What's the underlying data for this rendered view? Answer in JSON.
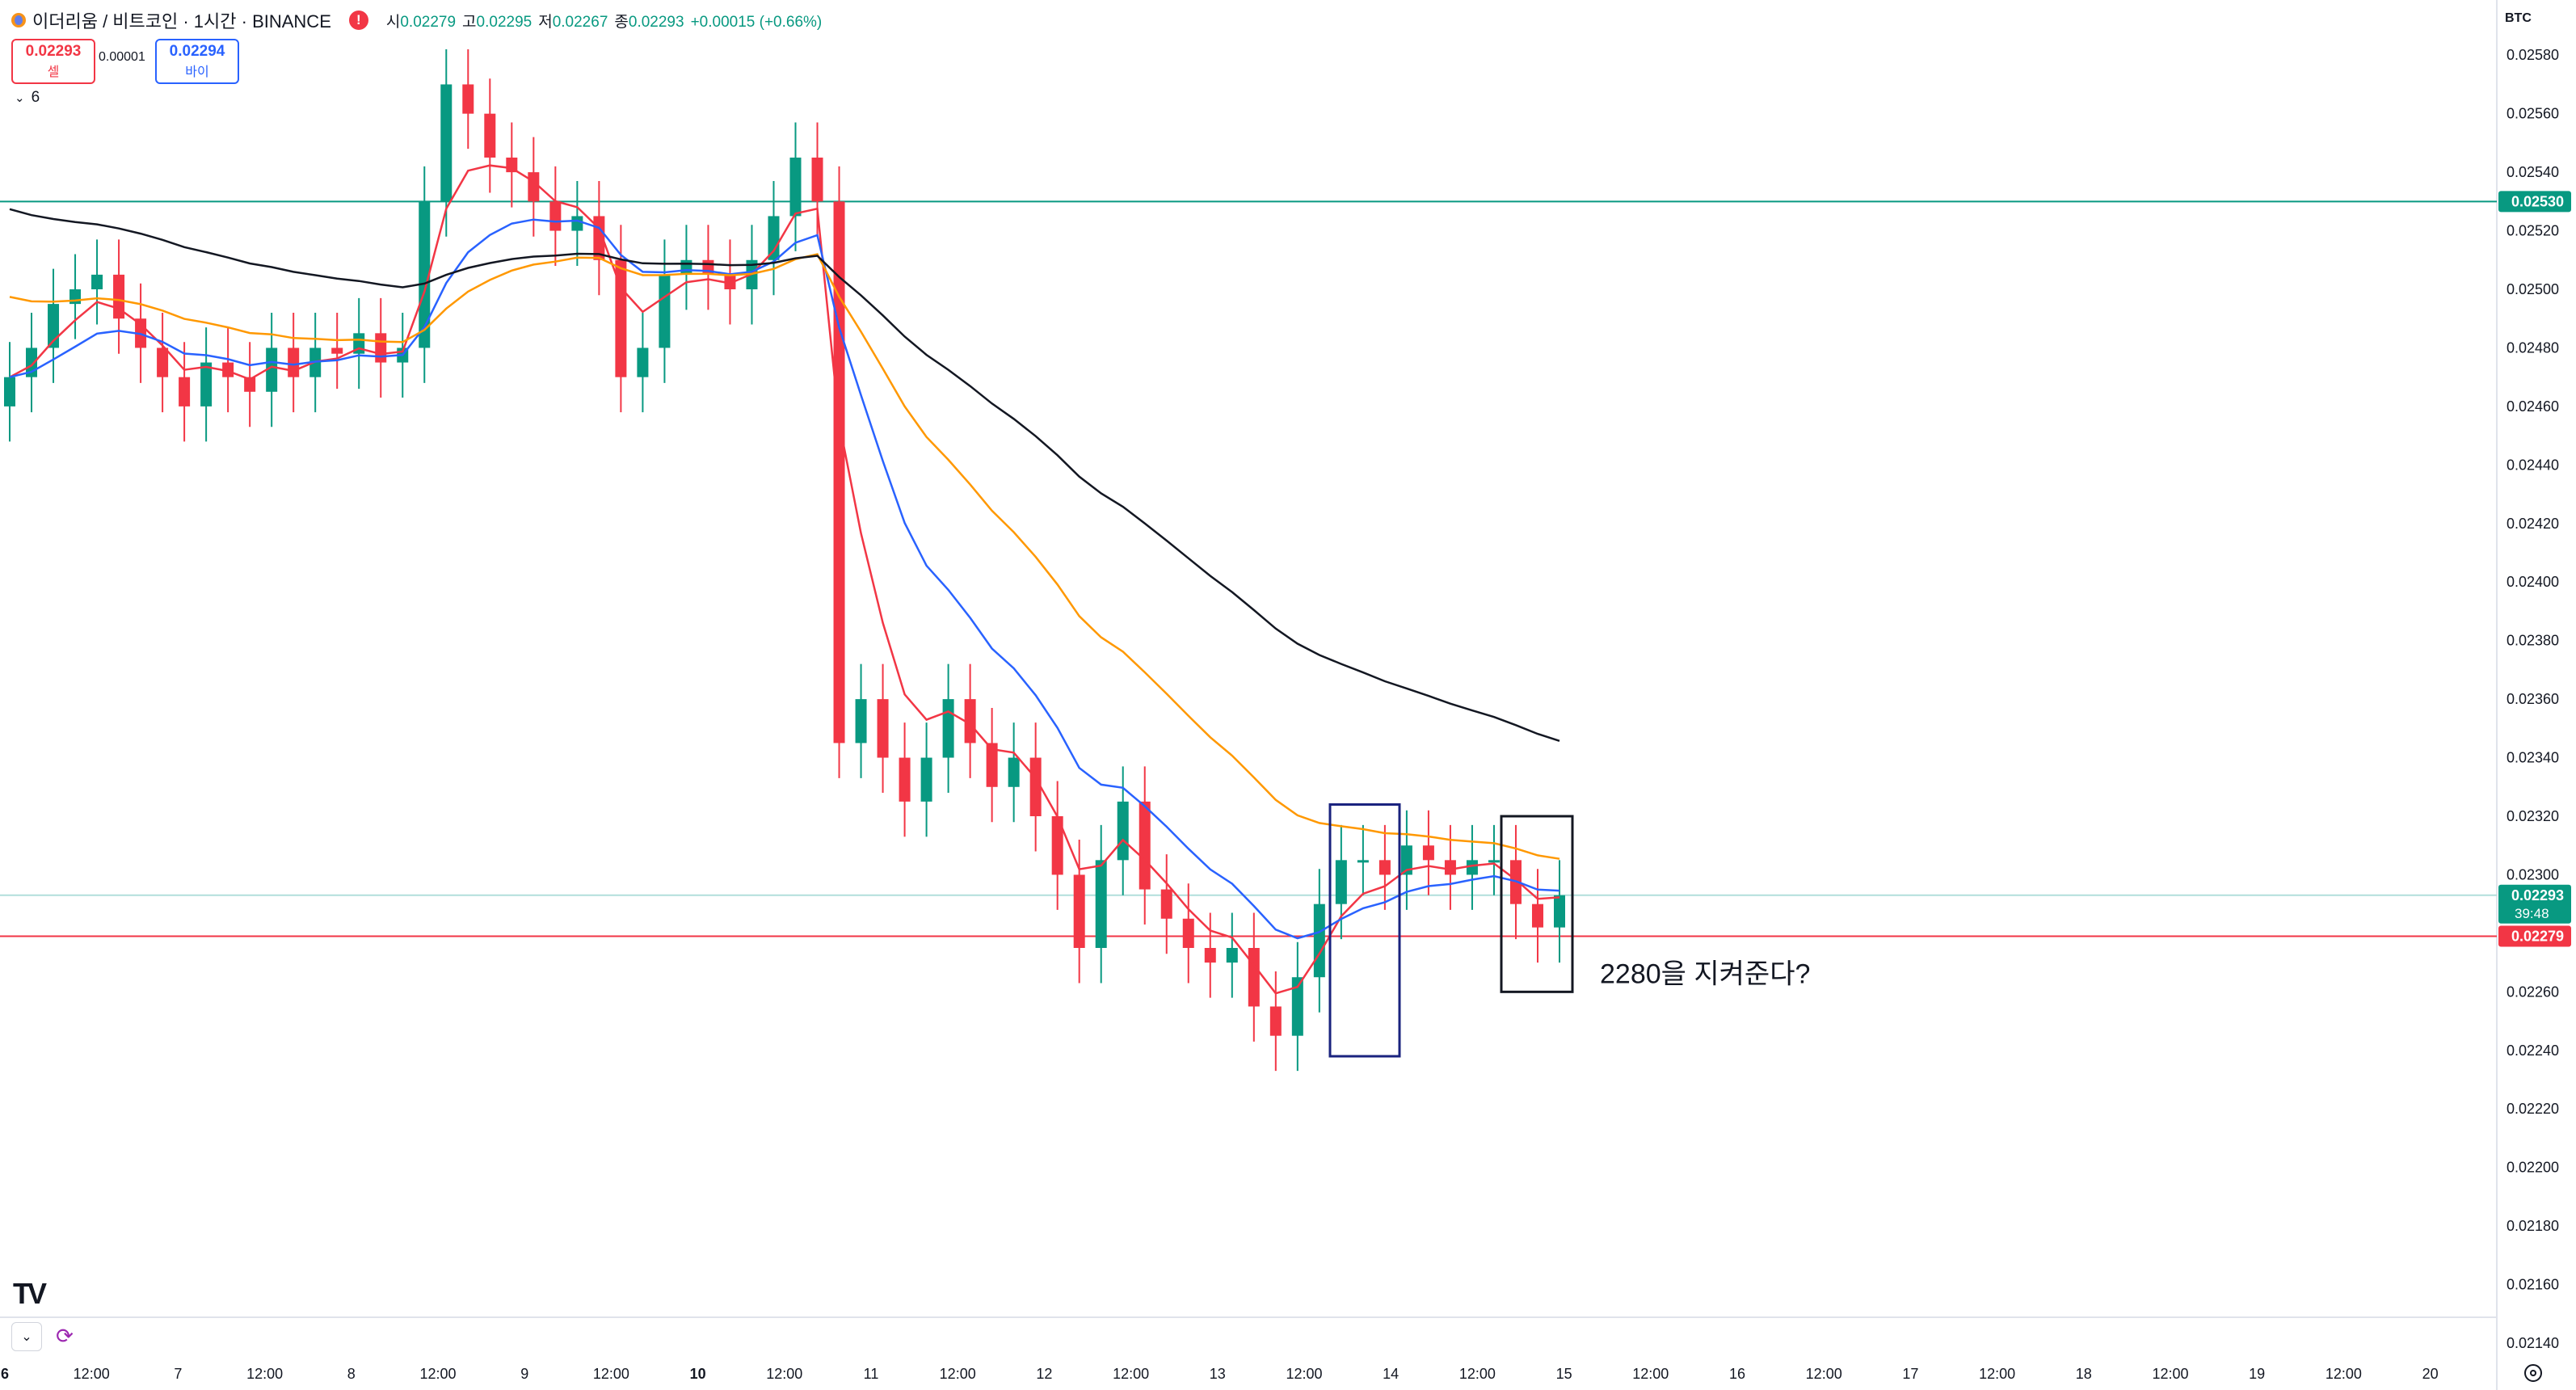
{
  "header": {
    "title": "이더리움 / 비트코인 · 1시간 · BINANCE",
    "alert_icon": "!",
    "ohlc": [
      {
        "k": "시",
        "v": "0.02279"
      },
      {
        "k": "고",
        "v": "0.02295"
      },
      {
        "k": "저",
        "v": "0.02267"
      },
      {
        "k": "종",
        "v": "0.02293"
      },
      {
        "k": "",
        "v": "+0.00015 (+0.66%)"
      }
    ]
  },
  "trade": {
    "sell_price": "0.02293",
    "sell_label": "셀",
    "spread": "0.00001",
    "buy_price": "0.02294",
    "buy_label": "바이"
  },
  "indicators": {
    "count": "6"
  },
  "currency": "BTC",
  "colors": {
    "up": "#089981",
    "down": "#f23645",
    "ema_red": "#f23645",
    "ema_blue": "#2962ff",
    "ema_orange": "#ff9800",
    "ema_black": "#131722",
    "hline_teal": "#089981",
    "hline_red": "#f23645"
  },
  "chart_data": {
    "type": "candlestick",
    "symbol": "ETH/BTC",
    "interval": "1h",
    "ylim": [
      0.0214,
      0.0259
    ],
    "y_ticks": [
      "0.02580",
      "0.02560",
      "0.02540",
      "0.02520",
      "0.02500",
      "0.02480",
      "0.02460",
      "0.02440",
      "0.02420",
      "0.02400",
      "0.02380",
      "0.02360",
      "0.02340",
      "0.02320",
      "0.02300",
      "0.02280",
      "0.02260",
      "0.02240",
      "0.02220",
      "0.02200",
      "0.02180",
      "0.02160",
      "0.02140"
    ],
    "x_ticks": [
      "6",
      "12:00",
      "7",
      "12:00",
      "8",
      "12:00",
      "9",
      "12:00",
      "10",
      "12:00",
      "11",
      "12:00",
      "12",
      "12:00",
      "13",
      "12:00",
      "14",
      "12:00",
      "15",
      "12:00",
      "16",
      "12:00",
      "17",
      "12:00",
      "18",
      "12:00",
      "19",
      "12:00",
      "20"
    ],
    "x_ticks_bold": [
      true,
      false,
      false,
      false,
      false,
      false,
      false,
      false,
      true,
      false,
      false,
      false,
      false,
      false,
      false,
      false,
      false,
      false,
      false,
      false,
      false,
      false,
      false,
      false,
      false,
      false,
      false,
      false,
      false
    ],
    "price_labels": [
      {
        "value": "0.02530",
        "kind": "hline",
        "color": "#089981"
      },
      {
        "value": "0.02293",
        "sub": "39:48",
        "kind": "current",
        "color": "#089981"
      },
      {
        "value": "0.02279",
        "kind": "hline",
        "color": "#f23645"
      }
    ],
    "ohlc_close_path": [
      0.0247,
      0.0248,
      0.02495,
      0.025,
      0.02505,
      0.0249,
      0.0248,
      0.0247,
      0.0246,
      0.02475,
      0.0247,
      0.02465,
      0.0248,
      0.0247,
      0.0248,
      0.02478,
      0.02485,
      0.02475,
      0.0248,
      0.0253,
      0.0257,
      0.0256,
      0.02545,
      0.0254,
      0.0253,
      0.0252,
      0.02525,
      0.0251,
      0.0247,
      0.0248,
      0.02505,
      0.0251,
      0.02505,
      0.025,
      0.0251,
      0.02525,
      0.02545,
      0.0253,
      0.02345,
      0.0236,
      0.0234,
      0.02325,
      0.0234,
      0.0236,
      0.02345,
      0.0233,
      0.0234,
      0.0232,
      0.023,
      0.02275,
      0.02305,
      0.02325,
      0.02295,
      0.02285,
      0.02275,
      0.0227,
      0.02275,
      0.02255,
      0.02245,
      0.02265,
      0.0229,
      0.02305,
      0.02305,
      0.023,
      0.0231,
      0.02305,
      0.023,
      0.02305,
      0.02305,
      0.0229,
      0.02282,
      0.02293
    ]
  },
  "annotation": {
    "text": "2280을 지켜준다?"
  }
}
